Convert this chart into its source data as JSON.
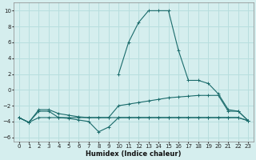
{
  "xlabel": "Humidex (Indice chaleur)",
  "background_color": "#d5eeee",
  "grid_color": "#b8dede",
  "line_color": "#1a6b6b",
  "xlim": [
    -0.5,
    23.5
  ],
  "ylim": [
    -6.5,
    11.0
  ],
  "xticks": [
    0,
    1,
    2,
    3,
    4,
    5,
    6,
    7,
    8,
    9,
    10,
    11,
    12,
    13,
    14,
    15,
    16,
    17,
    18,
    19,
    20,
    21,
    22,
    23
  ],
  "yticks": [
    -6,
    -4,
    -2,
    0,
    2,
    4,
    6,
    8,
    10
  ],
  "curve1_x": [
    0,
    1,
    2,
    3,
    4,
    5,
    6,
    7,
    8,
    9,
    10,
    11,
    12,
    13,
    14,
    15,
    16,
    17,
    18,
    19,
    20,
    21,
    22,
    23
  ],
  "curve1_y": [
    -3.5,
    -4.1,
    -3.5,
    -3.5,
    -3.5,
    -3.5,
    -3.5,
    -3.5,
    -3.5,
    -3.5,
    -3.5,
    -3.5,
    -3.5,
    -3.5,
    -3.5,
    -3.5,
    -3.5,
    -3.5,
    -3.5,
    -3.5,
    -3.5,
    -3.5,
    -3.5,
    -3.9
  ],
  "curve2_x": [
    0,
    1,
    2,
    3,
    4,
    5,
    6,
    7,
    8,
    9,
    10,
    11,
    12,
    13,
    14,
    15,
    16,
    17,
    18,
    19,
    20,
    21,
    22,
    23
  ],
  "curve2_y": [
    -3.5,
    -4.1,
    -2.5,
    -2.5,
    -3.0,
    -3.2,
    -3.4,
    -3.5,
    -3.5,
    -3.5,
    -2.0,
    -1.8,
    -1.6,
    -1.4,
    -1.2,
    -1.0,
    -0.9,
    -0.8,
    -0.7,
    -0.7,
    -0.7,
    -2.7,
    -2.7,
    -3.9
  ],
  "curve3_x": [
    0,
    1,
    2,
    3,
    4,
    5,
    6,
    7,
    8,
    9,
    10,
    11,
    12,
    13,
    14,
    15,
    16,
    17,
    18,
    19,
    20,
    21,
    22,
    23
  ],
  "curve3_y": [
    -3.5,
    -4.1,
    -2.7,
    -2.7,
    -3.5,
    -3.6,
    -3.8,
    -4.0,
    -5.3,
    -4.7,
    -3.5,
    -3.5,
    -3.5,
    -3.5,
    -3.5,
    -3.5,
    -3.5,
    -3.5,
    -3.5,
    -3.5,
    -3.5,
    -3.5,
    -3.5,
    -3.9
  ],
  "curve4_x": [
    10,
    11,
    12,
    13,
    14,
    15,
    16,
    17,
    18,
    19,
    20,
    21,
    22,
    23
  ],
  "curve4_y": [
    2.0,
    6.0,
    8.5,
    10.0,
    10.0,
    10.0,
    5.0,
    1.2,
    1.2,
    0.8,
    -0.5,
    -2.5,
    -2.7,
    -3.9
  ]
}
